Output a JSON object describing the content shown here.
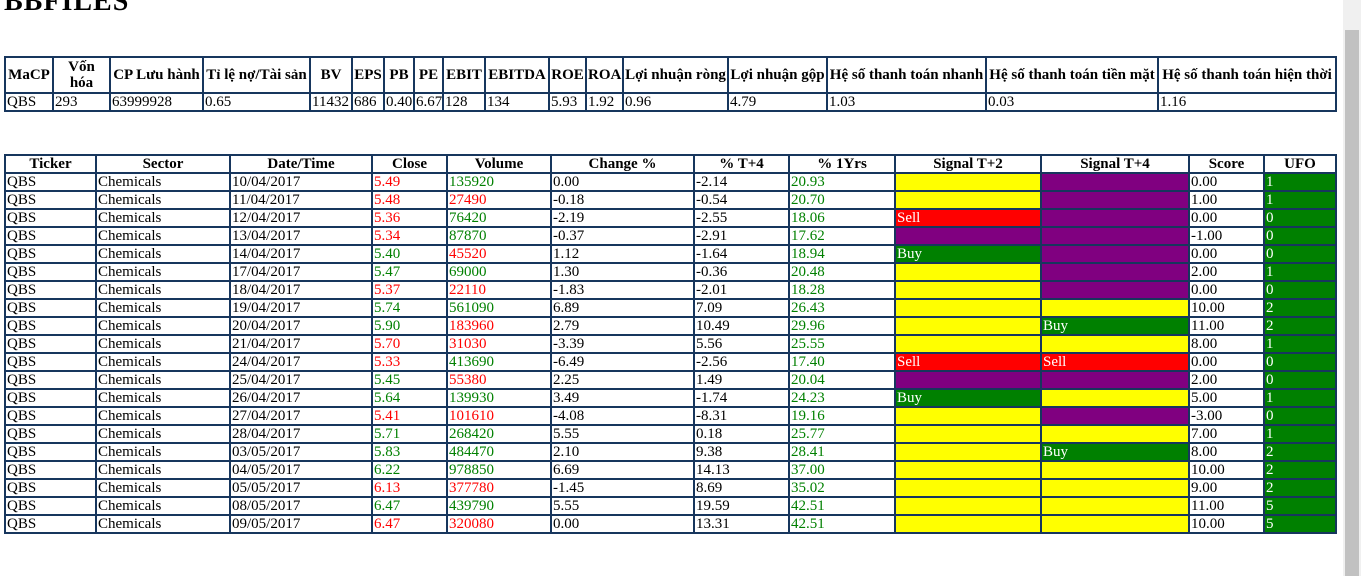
{
  "header": {
    "title": "BBFILES"
  },
  "summary_table": {
    "headers": [
      "MaCP",
      "Vốn hóa",
      "CP Lưu hành",
      "Tỉ lệ nợ/Tài sản",
      "BV",
      "EPS",
      "PB",
      "PE",
      "EBIT",
      "EBITDA",
      "ROE",
      "ROA",
      "Lợi nhuận ròng",
      "Lợi nhuận gộp",
      "Hệ số thanh toán nhanh",
      "Hệ số thanh toán tiền mặt",
      "Hệ số thanh toán hiện thời"
    ],
    "rows": [
      [
        "QBS",
        "293",
        "63999928",
        "0.65",
        "11432",
        "686",
        "0.40",
        "6.67",
        "128",
        "134",
        "5.93",
        "1.92",
        "0.96",
        "4.79",
        "1.03",
        "0.03",
        "1.16"
      ]
    ]
  },
  "signal_table": {
    "headers": [
      "Ticker",
      "Sector",
      "Date/Time",
      "Close",
      "Volume",
      "Change %",
      "% T+4",
      "% 1Yrs",
      "Signal T+2",
      "Signal T+4",
      "Score",
      "UFO"
    ],
    "rows": [
      {
        "ticker": "QBS",
        "sector": "Chemicals",
        "date": "10/04/2017",
        "close": "5.49",
        "close_color": "#ff0000",
        "volume": "135920",
        "volume_color": "#008000",
        "change": "0.00",
        "t4": "-2.14",
        "yr1": "20.93",
        "signal_t2": {
          "color": "#ffff00"
        },
        "signal_t4": {
          "color": "#800080"
        },
        "score": "0.00",
        "ufo": "1"
      },
      {
        "ticker": "QBS",
        "sector": "Chemicals",
        "date": "11/04/2017",
        "close": "5.48",
        "close_color": "#ff0000",
        "volume": "27490",
        "volume_color": "#ff0000",
        "change": "-0.18",
        "t4": "-0.54",
        "yr1": "20.70",
        "signal_t2": {
          "color": "#ffff00"
        },
        "signal_t4": {
          "color": "#800080"
        },
        "score": "1.00",
        "ufo": "1"
      },
      {
        "ticker": "QBS",
        "sector": "Chemicals",
        "date": "12/04/2017",
        "close": "5.36",
        "close_color": "#ff0000",
        "volume": "76420",
        "volume_color": "#008000",
        "change": "-2.19",
        "t4": "-2.55",
        "yr1": "18.06",
        "signal_t2": {
          "color": "#ff0000",
          "label": "Sell"
        },
        "signal_t4": {
          "color": "#800080"
        },
        "score": "0.00",
        "ufo": "0"
      },
      {
        "ticker": "QBS",
        "sector": "Chemicals",
        "date": "13/04/2017",
        "close": "5.34",
        "close_color": "#ff0000",
        "volume": "87870",
        "volume_color": "#008000",
        "change": "-0.37",
        "t4": "-2.91",
        "yr1": "17.62",
        "signal_t2": {
          "color": "#800080"
        },
        "signal_t4": {
          "color": "#800080"
        },
        "score": "-1.00",
        "ufo": "0"
      },
      {
        "ticker": "QBS",
        "sector": "Chemicals",
        "date": "14/04/2017",
        "close": "5.40",
        "close_color": "#008000",
        "volume": "45520",
        "volume_color": "#ff0000",
        "change": "1.12",
        "t4": "-1.64",
        "yr1": "18.94",
        "signal_t2": {
          "color": "#008000",
          "label": "Buy"
        },
        "signal_t4": {
          "color": "#800080"
        },
        "score": "0.00",
        "ufo": "0"
      },
      {
        "ticker": "QBS",
        "sector": "Chemicals",
        "date": "17/04/2017",
        "close": "5.47",
        "close_color": "#008000",
        "volume": "69000",
        "volume_color": "#008000",
        "change": "1.30",
        "t4": "-0.36",
        "yr1": "20.48",
        "signal_t2": {
          "color": "#ffff00"
        },
        "signal_t4": {
          "color": "#800080"
        },
        "score": "2.00",
        "ufo": "1"
      },
      {
        "ticker": "QBS",
        "sector": "Chemicals",
        "date": "18/04/2017",
        "close": "5.37",
        "close_color": "#ff0000",
        "volume": "22110",
        "volume_color": "#ff0000",
        "change": "-1.83",
        "t4": "-2.01",
        "yr1": "18.28",
        "signal_t2": {
          "color": "#ffff00"
        },
        "signal_t4": {
          "color": "#800080"
        },
        "score": "0.00",
        "ufo": "0"
      },
      {
        "ticker": "QBS",
        "sector": "Chemicals",
        "date": "19/04/2017",
        "close": "5.74",
        "close_color": "#008000",
        "volume": "561090",
        "volume_color": "#008000",
        "change": "6.89",
        "t4": "7.09",
        "yr1": "26.43",
        "signal_t2": {
          "color": "#ffff00"
        },
        "signal_t4": {
          "color": "#ffff00"
        },
        "score": "10.00",
        "ufo": "2"
      },
      {
        "ticker": "QBS",
        "sector": "Chemicals",
        "date": "20/04/2017",
        "close": "5.90",
        "close_color": "#008000",
        "volume": "183960",
        "volume_color": "#ff0000",
        "change": "2.79",
        "t4": "10.49",
        "yr1": "29.96",
        "signal_t2": {
          "color": "#ffff00"
        },
        "signal_t4": {
          "color": "#008000",
          "label": "Buy"
        },
        "score": "11.00",
        "ufo": "2"
      },
      {
        "ticker": "QBS",
        "sector": "Chemicals",
        "date": "21/04/2017",
        "close": "5.70",
        "close_color": "#ff0000",
        "volume": "31030",
        "volume_color": "#ff0000",
        "change": "-3.39",
        "t4": "5.56",
        "yr1": "25.55",
        "signal_t2": {
          "color": "#ffff00"
        },
        "signal_t4": {
          "color": "#ffff00"
        },
        "score": "8.00",
        "ufo": "1"
      },
      {
        "ticker": "QBS",
        "sector": "Chemicals",
        "date": "24/04/2017",
        "close": "5.33",
        "close_color": "#ff0000",
        "volume": "413690",
        "volume_color": "#008000",
        "change": "-6.49",
        "t4": "-2.56",
        "yr1": "17.40",
        "signal_t2": {
          "color": "#ff0000",
          "label": "Sell"
        },
        "signal_t4": {
          "color": "#ff0000",
          "label": "Sell"
        },
        "score": "0.00",
        "ufo": "0"
      },
      {
        "ticker": "QBS",
        "sector": "Chemicals",
        "date": "25/04/2017",
        "close": "5.45",
        "close_color": "#008000",
        "volume": "55380",
        "volume_color": "#ff0000",
        "change": "2.25",
        "t4": "1.49",
        "yr1": "20.04",
        "signal_t2": {
          "color": "#800080"
        },
        "signal_t4": {
          "color": "#800080"
        },
        "score": "2.00",
        "ufo": "0"
      },
      {
        "ticker": "QBS",
        "sector": "Chemicals",
        "date": "26/04/2017",
        "close": "5.64",
        "close_color": "#008000",
        "volume": "139930",
        "volume_color": "#008000",
        "change": "3.49",
        "t4": "-1.74",
        "yr1": "24.23",
        "signal_t2": {
          "color": "#008000",
          "label": "Buy"
        },
        "signal_t4": {
          "color": "#ffff00"
        },
        "score": "5.00",
        "ufo": "1"
      },
      {
        "ticker": "QBS",
        "sector": "Chemicals",
        "date": "27/04/2017",
        "close": "5.41",
        "close_color": "#ff0000",
        "volume": "101610",
        "volume_color": "#ff0000",
        "change": "-4.08",
        "t4": "-8.31",
        "yr1": "19.16",
        "signal_t2": {
          "color": "#ffff00"
        },
        "signal_t4": {
          "color": "#800080"
        },
        "score": "-3.00",
        "ufo": "0"
      },
      {
        "ticker": "QBS",
        "sector": "Chemicals",
        "date": "28/04/2017",
        "close": "5.71",
        "close_color": "#008000",
        "volume": "268420",
        "volume_color": "#008000",
        "change": "5.55",
        "t4": "0.18",
        "yr1": "25.77",
        "signal_t2": {
          "color": "#ffff00"
        },
        "signal_t4": {
          "color": "#ffff00"
        },
        "score": "7.00",
        "ufo": "1"
      },
      {
        "ticker": "QBS",
        "sector": "Chemicals",
        "date": "03/05/2017",
        "close": "5.83",
        "close_color": "#008000",
        "volume": "484470",
        "volume_color": "#008000",
        "change": "2.10",
        "t4": "9.38",
        "yr1": "28.41",
        "signal_t2": {
          "color": "#ffff00"
        },
        "signal_t4": {
          "color": "#008000",
          "label": "Buy"
        },
        "score": "8.00",
        "ufo": "2"
      },
      {
        "ticker": "QBS",
        "sector": "Chemicals",
        "date": "04/05/2017",
        "close": "6.22",
        "close_color": "#008000",
        "volume": "978850",
        "volume_color": "#008000",
        "change": "6.69",
        "t4": "14.13",
        "yr1": "37.00",
        "signal_t2": {
          "color": "#ffff00"
        },
        "signal_t4": {
          "color": "#ffff00"
        },
        "score": "10.00",
        "ufo": "2"
      },
      {
        "ticker": "QBS",
        "sector": "Chemicals",
        "date": "05/05/2017",
        "close": "6.13",
        "close_color": "#ff0000",
        "volume": "377780",
        "volume_color": "#ff0000",
        "change": "-1.45",
        "t4": "8.69",
        "yr1": "35.02",
        "signal_t2": {
          "color": "#ffff00"
        },
        "signal_t4": {
          "color": "#ffff00"
        },
        "score": "9.00",
        "ufo": "2"
      },
      {
        "ticker": "QBS",
        "sector": "Chemicals",
        "date": "08/05/2017",
        "close": "6.47",
        "close_color": "#008000",
        "volume": "439790",
        "volume_color": "#008000",
        "change": "5.55",
        "t4": "19.59",
        "yr1": "42.51",
        "signal_t2": {
          "color": "#ffff00"
        },
        "signal_t4": {
          "color": "#ffff00"
        },
        "score": "11.00",
        "ufo": "5"
      },
      {
        "ticker": "QBS",
        "sector": "Chemicals",
        "date": "09/05/2017",
        "close": "6.47",
        "close_color": "#ff0000",
        "volume": "320080",
        "volume_color": "#ff0000",
        "change": "0.00",
        "t4": "13.31",
        "yr1": "42.51",
        "signal_t2": {
          "color": "#ffff00"
        },
        "signal_t4": {
          "color": "#ffff00"
        },
        "score": "10.00",
        "ufo": "5"
      }
    ]
  }
}
